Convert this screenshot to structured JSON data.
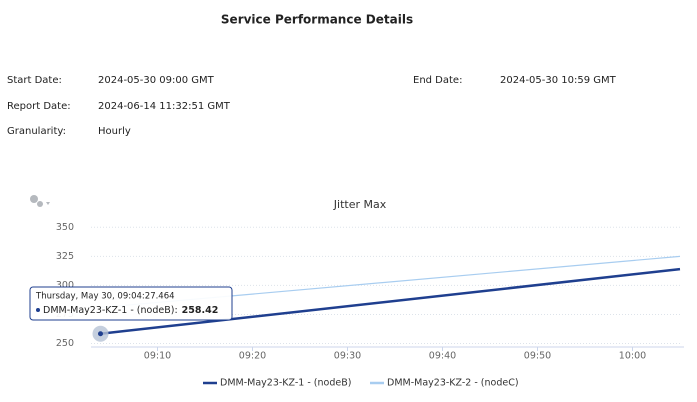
{
  "report": {
    "title": "Service Performance Details",
    "fields": [
      {
        "label": "Start Date:",
        "value": "2024-05-30 09:00 GMT"
      },
      {
        "label": "End Date:",
        "value": "2024-05-30 10:59 GMT"
      },
      {
        "label": "Report Date:",
        "value": "2024-06-14 11:32:51 GMT"
      },
      {
        "label": "Granularity:",
        "value": "Hourly"
      }
    ]
  },
  "chart_data": {
    "type": "line",
    "title": "Jitter Max",
    "x": [
      "09:04",
      "10:05"
    ],
    "series": [
      {
        "name": "DMM-May23-KZ-1 - (nodeB)",
        "color": "#1f3f8f",
        "values": [
          258.42,
          314
        ]
      },
      {
        "name": "DMM-May23-KZ-2 - (nodeC)",
        "color": "#a8cdf0",
        "values": [
          281,
          325
        ]
      }
    ],
    "xlim": [
      "09:03",
      "10:05"
    ],
    "xticks": [
      "09:10",
      "09:20",
      "09:30",
      "09:40",
      "09:50",
      "10:00"
    ],
    "ylim": [
      247,
      358
    ],
    "yticks": [
      250,
      275,
      300,
      325,
      350
    ],
    "grid": true,
    "legend": "bottom",
    "tooltip": {
      "date": "Thursday, May 30, 09:04:27.464",
      "point_label": "DMM-May23-KZ-1 - (nodeB):"
    }
  }
}
